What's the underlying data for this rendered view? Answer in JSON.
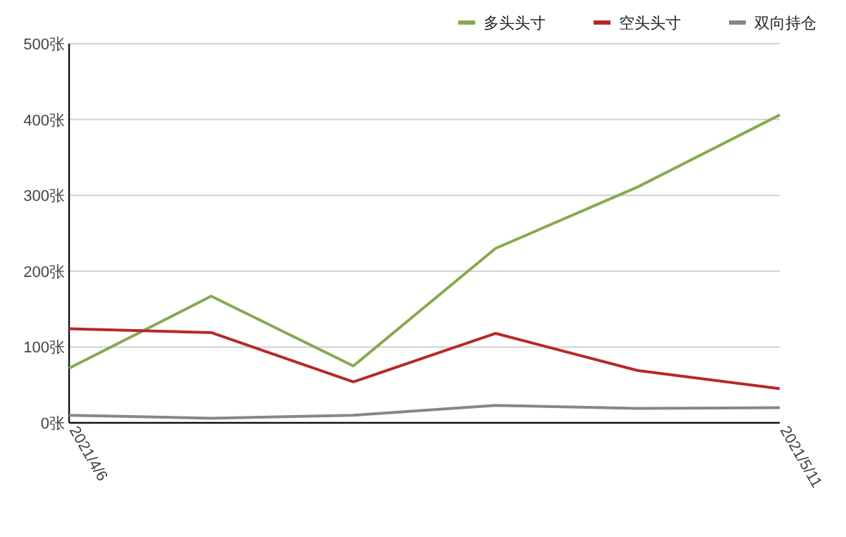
{
  "chart_data": {
    "type": "line",
    "categories": [
      "2021/4/6",
      null,
      null,
      null,
      null,
      "2021/5/11"
    ],
    "series": [
      {
        "name": "多头头寸",
        "color": "#86a94f",
        "values": [
          72,
          167,
          75,
          230,
          311,
          406
        ]
      },
      {
        "name": "空头头寸",
        "color": "#b8282a",
        "values": [
          124,
          119,
          54,
          118,
          69,
          45
        ]
      },
      {
        "name": "双向持仓",
        "color": "#878787",
        "values": [
          10,
          6,
          10,
          23,
          19,
          20
        ]
      }
    ],
    "ylim": [
      0,
      500
    ],
    "yticks": [
      {
        "value": 0,
        "label": "0张"
      },
      {
        "value": 100,
        "label": "100张"
      },
      {
        "value": 200,
        "label": "200张"
      },
      {
        "value": 300,
        "label": "300张"
      },
      {
        "value": 400,
        "label": "400张"
      },
      {
        "value": 500,
        "label": "500张"
      }
    ],
    "grid": "y",
    "legend": "top right",
    "marker": "none",
    "line_style": "solid"
  }
}
